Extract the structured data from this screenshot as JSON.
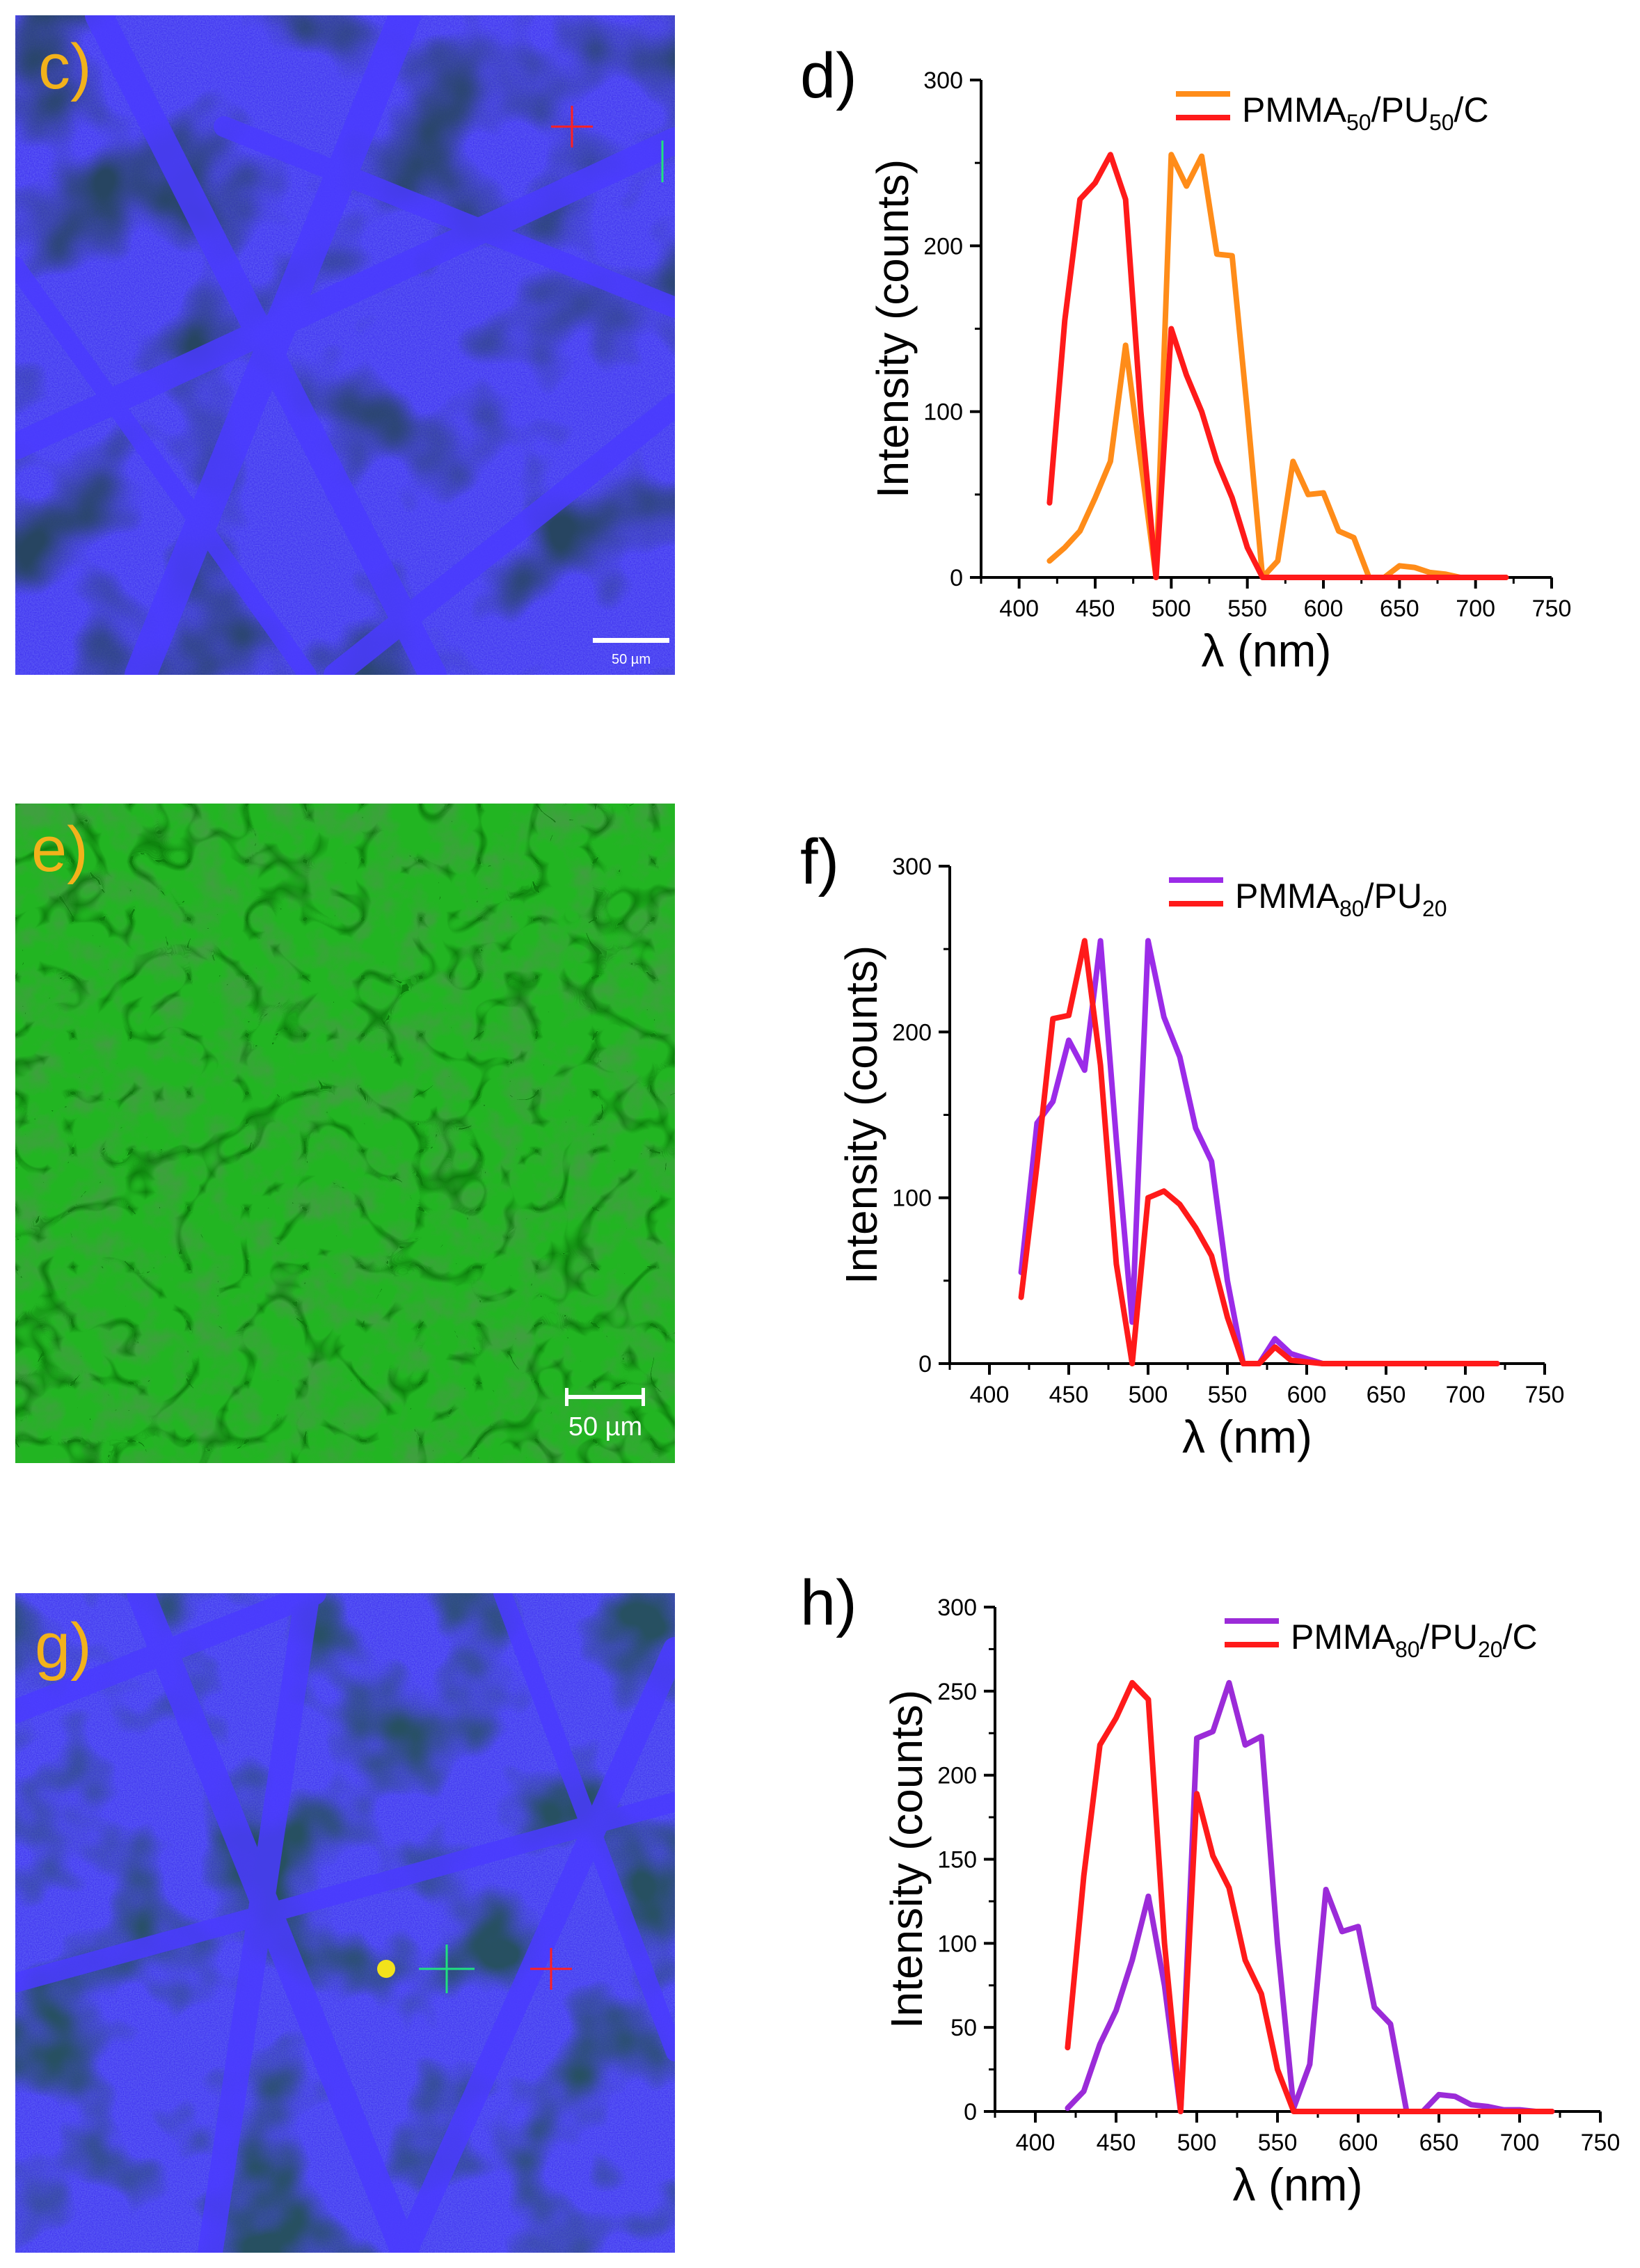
{
  "figure": {
    "panel_labels": {
      "c": "c)",
      "d": "d)",
      "e": "e)",
      "f": "f)",
      "g": "g)",
      "h": "h)"
    },
    "micrographs": {
      "c": {
        "scale_bar": "50 µm",
        "tint": "#3b2cf0"
      },
      "e": {
        "scale_bar": "50 µm",
        "tint": "#22b522"
      },
      "g": {
        "scale_bar": "",
        "tint": "#3b2cf0"
      }
    }
  },
  "chart_data": [
    {
      "panel": "d",
      "type": "line",
      "xlabel": "λ (nm)",
      "ylabel": "Intensity (counts)",
      "xlim": [
        375,
        750
      ],
      "ylim": [
        0,
        300
      ],
      "xticks": [
        400,
        450,
        500,
        550,
        600,
        650,
        700,
        750
      ],
      "yticks": [
        0,
        100,
        200,
        300
      ],
      "legend": {
        "main": "PMMA",
        "sub1": "50",
        "mid": "/PU",
        "sub2": "50",
        "tail": "/C"
      },
      "series": [
        {
          "name": "orange",
          "color": "#ff8c19",
          "x": [
            420,
            430,
            440,
            450,
            460,
            470,
            480,
            490,
            500,
            510,
            520,
            530,
            540,
            550,
            560,
            570,
            580,
            590,
            600,
            610,
            620,
            630,
            640,
            650,
            660,
            670,
            680,
            690,
            700,
            710,
            720
          ],
          "y": [
            10,
            18,
            28,
            48,
            70,
            140,
            70,
            0,
            255,
            236,
            254,
            195,
            194,
            100,
            0,
            10,
            70,
            50,
            51,
            28,
            24,
            0,
            0,
            7,
            6,
            3,
            2,
            0,
            0,
            0,
            0
          ]
        },
        {
          "name": "red",
          "color": "#ff1a1a",
          "x": [
            420,
            430,
            440,
            450,
            460,
            470,
            480,
            490,
            500,
            510,
            520,
            530,
            540,
            550,
            560,
            570,
            580,
            590,
            600,
            610,
            620,
            630,
            640,
            650,
            660,
            670,
            680,
            690,
            700,
            710,
            720
          ],
          "y": [
            45,
            155,
            228,
            238,
            255,
            228,
            100,
            0,
            150,
            122,
            100,
            70,
            48,
            18,
            0,
            0,
            0,
            0,
            0,
            0,
            0,
            0,
            0,
            0,
            0,
            0,
            0,
            0,
            0,
            0,
            0
          ]
        }
      ]
    },
    {
      "panel": "f",
      "type": "line",
      "xlabel": "λ (nm)",
      "ylabel": "Intensity (counts)",
      "xlim": [
        375,
        750
      ],
      "ylim": [
        0,
        300
      ],
      "xticks": [
        400,
        450,
        500,
        550,
        600,
        650,
        700,
        750
      ],
      "yticks": [
        0,
        100,
        200,
        300
      ],
      "legend": {
        "main": "PMMA",
        "sub1": "80",
        "mid": "/PU",
        "sub2": "20",
        "tail": ""
      },
      "series": [
        {
          "name": "purple",
          "color": "#9b2be8",
          "x": [
            420,
            430,
            440,
            450,
            460,
            470,
            480,
            490,
            500,
            510,
            520,
            530,
            540,
            550,
            560,
            570,
            580,
            590,
            600,
            610,
            620,
            630,
            640,
            650,
            660,
            670,
            680,
            690,
            700,
            710,
            720
          ],
          "y": [
            55,
            145,
            158,
            195,
            177,
            255,
            135,
            25,
            255,
            209,
            185,
            142,
            122,
            50,
            0,
            0,
            15,
            6,
            3,
            0,
            0,
            0,
            0,
            0,
            0,
            0,
            0,
            0,
            0,
            0,
            0
          ]
        },
        {
          "name": "red",
          "color": "#ff1a1a",
          "x": [
            420,
            430,
            440,
            450,
            460,
            470,
            480,
            490,
            500,
            510,
            520,
            530,
            540,
            550,
            560,
            570,
            580,
            590,
            600,
            610,
            620,
            630,
            640,
            650,
            660,
            670,
            680,
            690,
            700,
            710,
            720
          ],
          "y": [
            40,
            120,
            208,
            210,
            255,
            180,
            60,
            0,
            100,
            104,
            96,
            82,
            65,
            28,
            0,
            0,
            10,
            2,
            1,
            0,
            0,
            0,
            0,
            0,
            0,
            0,
            0,
            0,
            0,
            0,
            0
          ]
        }
      ]
    },
    {
      "panel": "h",
      "type": "line",
      "xlabel": "λ (nm)",
      "ylabel": "Intensity (counts)",
      "xlim": [
        375,
        750
      ],
      "ylim": [
        0,
        300
      ],
      "xticks": [
        400,
        450,
        500,
        550,
        600,
        650,
        700,
        750
      ],
      "yticks": [
        0,
        50,
        100,
        150,
        200,
        250,
        300
      ],
      "legend": {
        "main": "PMMA",
        "sub1": "80",
        "mid": "/PU",
        "sub2": "20",
        "tail": "/C"
      },
      "series": [
        {
          "name": "purple",
          "color": "#9b2bd8",
          "x": [
            420,
            430,
            440,
            450,
            460,
            470,
            480,
            490,
            500,
            510,
            520,
            530,
            540,
            550,
            560,
            570,
            580,
            590,
            600,
            610,
            620,
            630,
            640,
            650,
            660,
            670,
            680,
            690,
            700,
            710,
            720
          ],
          "y": [
            2,
            12,
            40,
            60,
            90,
            128,
            75,
            0,
            222,
            226,
            255,
            218,
            223,
            100,
            2,
            28,
            132,
            107,
            110,
            62,
            52,
            0,
            0,
            10,
            9,
            4,
            3,
            1,
            1,
            0,
            0
          ]
        },
        {
          "name": "red",
          "color": "#ff1a1a",
          "x": [
            420,
            430,
            440,
            450,
            460,
            470,
            480,
            490,
            500,
            510,
            520,
            530,
            540,
            550,
            560,
            570,
            580,
            590,
            600,
            610,
            620,
            630,
            640,
            650,
            660,
            670,
            680,
            690,
            700,
            710,
            720
          ],
          "y": [
            38,
            140,
            218,
            234,
            255,
            245,
            100,
            0,
            189,
            152,
            133,
            90,
            70,
            25,
            0,
            0,
            0,
            0,
            0,
            0,
            0,
            0,
            0,
            0,
            0,
            0,
            0,
            0,
            0,
            0,
            0
          ]
        }
      ]
    }
  ]
}
